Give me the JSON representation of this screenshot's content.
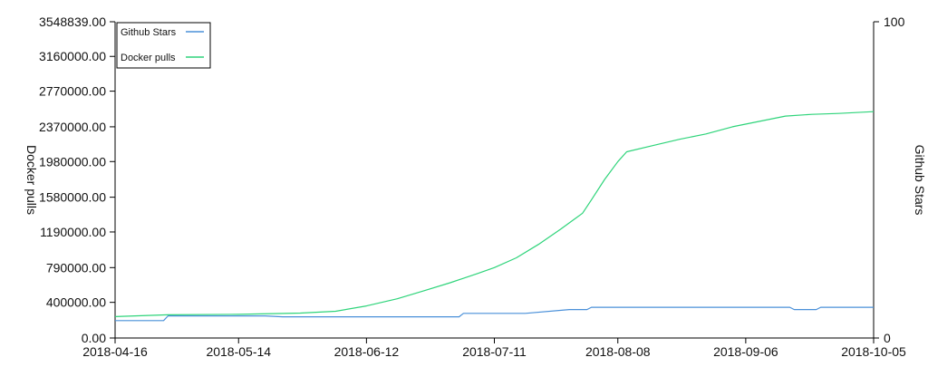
{
  "chart_data": {
    "type": "line",
    "title": "",
    "xlabel": "",
    "x_range": [
      "2018-04-16",
      "2018-10-05"
    ],
    "x_ticks": [
      "2018-04-16",
      "2018-05-14",
      "2018-06-12",
      "2018-07-11",
      "2018-08-08",
      "2018-09-06",
      "2018-10-05"
    ],
    "y_left": {
      "label": "Docker pulls",
      "range": [
        0,
        3548839
      ],
      "tick_labels": [
        "0.00",
        "400000.00",
        "790000.00",
        "1190000.00",
        "1580000.00",
        "1980000.00",
        "2370000.00",
        "2770000.00",
        "3160000.00",
        "3548839.00"
      ],
      "tick_values": [
        0,
        400000,
        790000,
        1190000,
        1580000,
        1980000,
        2370000,
        2770000,
        3160000,
        3548839
      ]
    },
    "y_right": {
      "label": "Github Stars",
      "range": [
        0,
        100
      ],
      "tick_labels": [
        "0",
        "100"
      ],
      "tick_values": [
        0,
        100
      ]
    },
    "grid": false,
    "legend": {
      "placement": "top-left"
    },
    "series": [
      {
        "name": "Github Stars",
        "axis": "right",
        "color": "#4a90d9",
        "points": [
          [
            "2018-04-16",
            5.5
          ],
          [
            "2018-04-23",
            5.5
          ],
          [
            "2018-04-27",
            5.5
          ],
          [
            "2018-04-28",
            7.0
          ],
          [
            "2018-05-20",
            7.0
          ],
          [
            "2018-05-24",
            6.7
          ],
          [
            "2018-07-03",
            6.7
          ],
          [
            "2018-07-04",
            7.8
          ],
          [
            "2018-07-18",
            7.8
          ],
          [
            "2018-07-28",
            9.0
          ],
          [
            "2018-08-01",
            9.0
          ],
          [
            "2018-08-02",
            9.7
          ],
          [
            "2018-09-16",
            9.7
          ],
          [
            "2018-09-17",
            9.0
          ],
          [
            "2018-09-22",
            9.0
          ],
          [
            "2018-09-23",
            9.7
          ],
          [
            "2018-10-05",
            9.7
          ]
        ]
      },
      {
        "name": "Docker pulls",
        "axis": "left",
        "color": "#2ed47a",
        "points": [
          [
            "2018-04-16",
            240000
          ],
          [
            "2018-04-28",
            260000
          ],
          [
            "2018-05-14",
            265000
          ],
          [
            "2018-05-28",
            280000
          ],
          [
            "2018-06-05",
            300000
          ],
          [
            "2018-06-12",
            360000
          ],
          [
            "2018-06-19",
            440000
          ],
          [
            "2018-06-25",
            530000
          ],
          [
            "2018-07-01",
            620000
          ],
          [
            "2018-07-07",
            720000
          ],
          [
            "2018-07-11",
            790000
          ],
          [
            "2018-07-16",
            900000
          ],
          [
            "2018-07-21",
            1050000
          ],
          [
            "2018-07-26",
            1220000
          ],
          [
            "2018-07-31",
            1400000
          ],
          [
            "2018-08-02",
            1550000
          ],
          [
            "2018-08-05",
            1780000
          ],
          [
            "2018-08-08",
            1980000
          ],
          [
            "2018-08-10",
            2090000
          ],
          [
            "2018-08-16",
            2160000
          ],
          [
            "2018-08-22",
            2230000
          ],
          [
            "2018-08-28",
            2290000
          ],
          [
            "2018-09-03",
            2370000
          ],
          [
            "2018-09-09",
            2430000
          ],
          [
            "2018-09-15",
            2490000
          ],
          [
            "2018-09-21",
            2510000
          ],
          [
            "2018-09-27",
            2520000
          ],
          [
            "2018-10-05",
            2540000
          ]
        ]
      }
    ]
  }
}
